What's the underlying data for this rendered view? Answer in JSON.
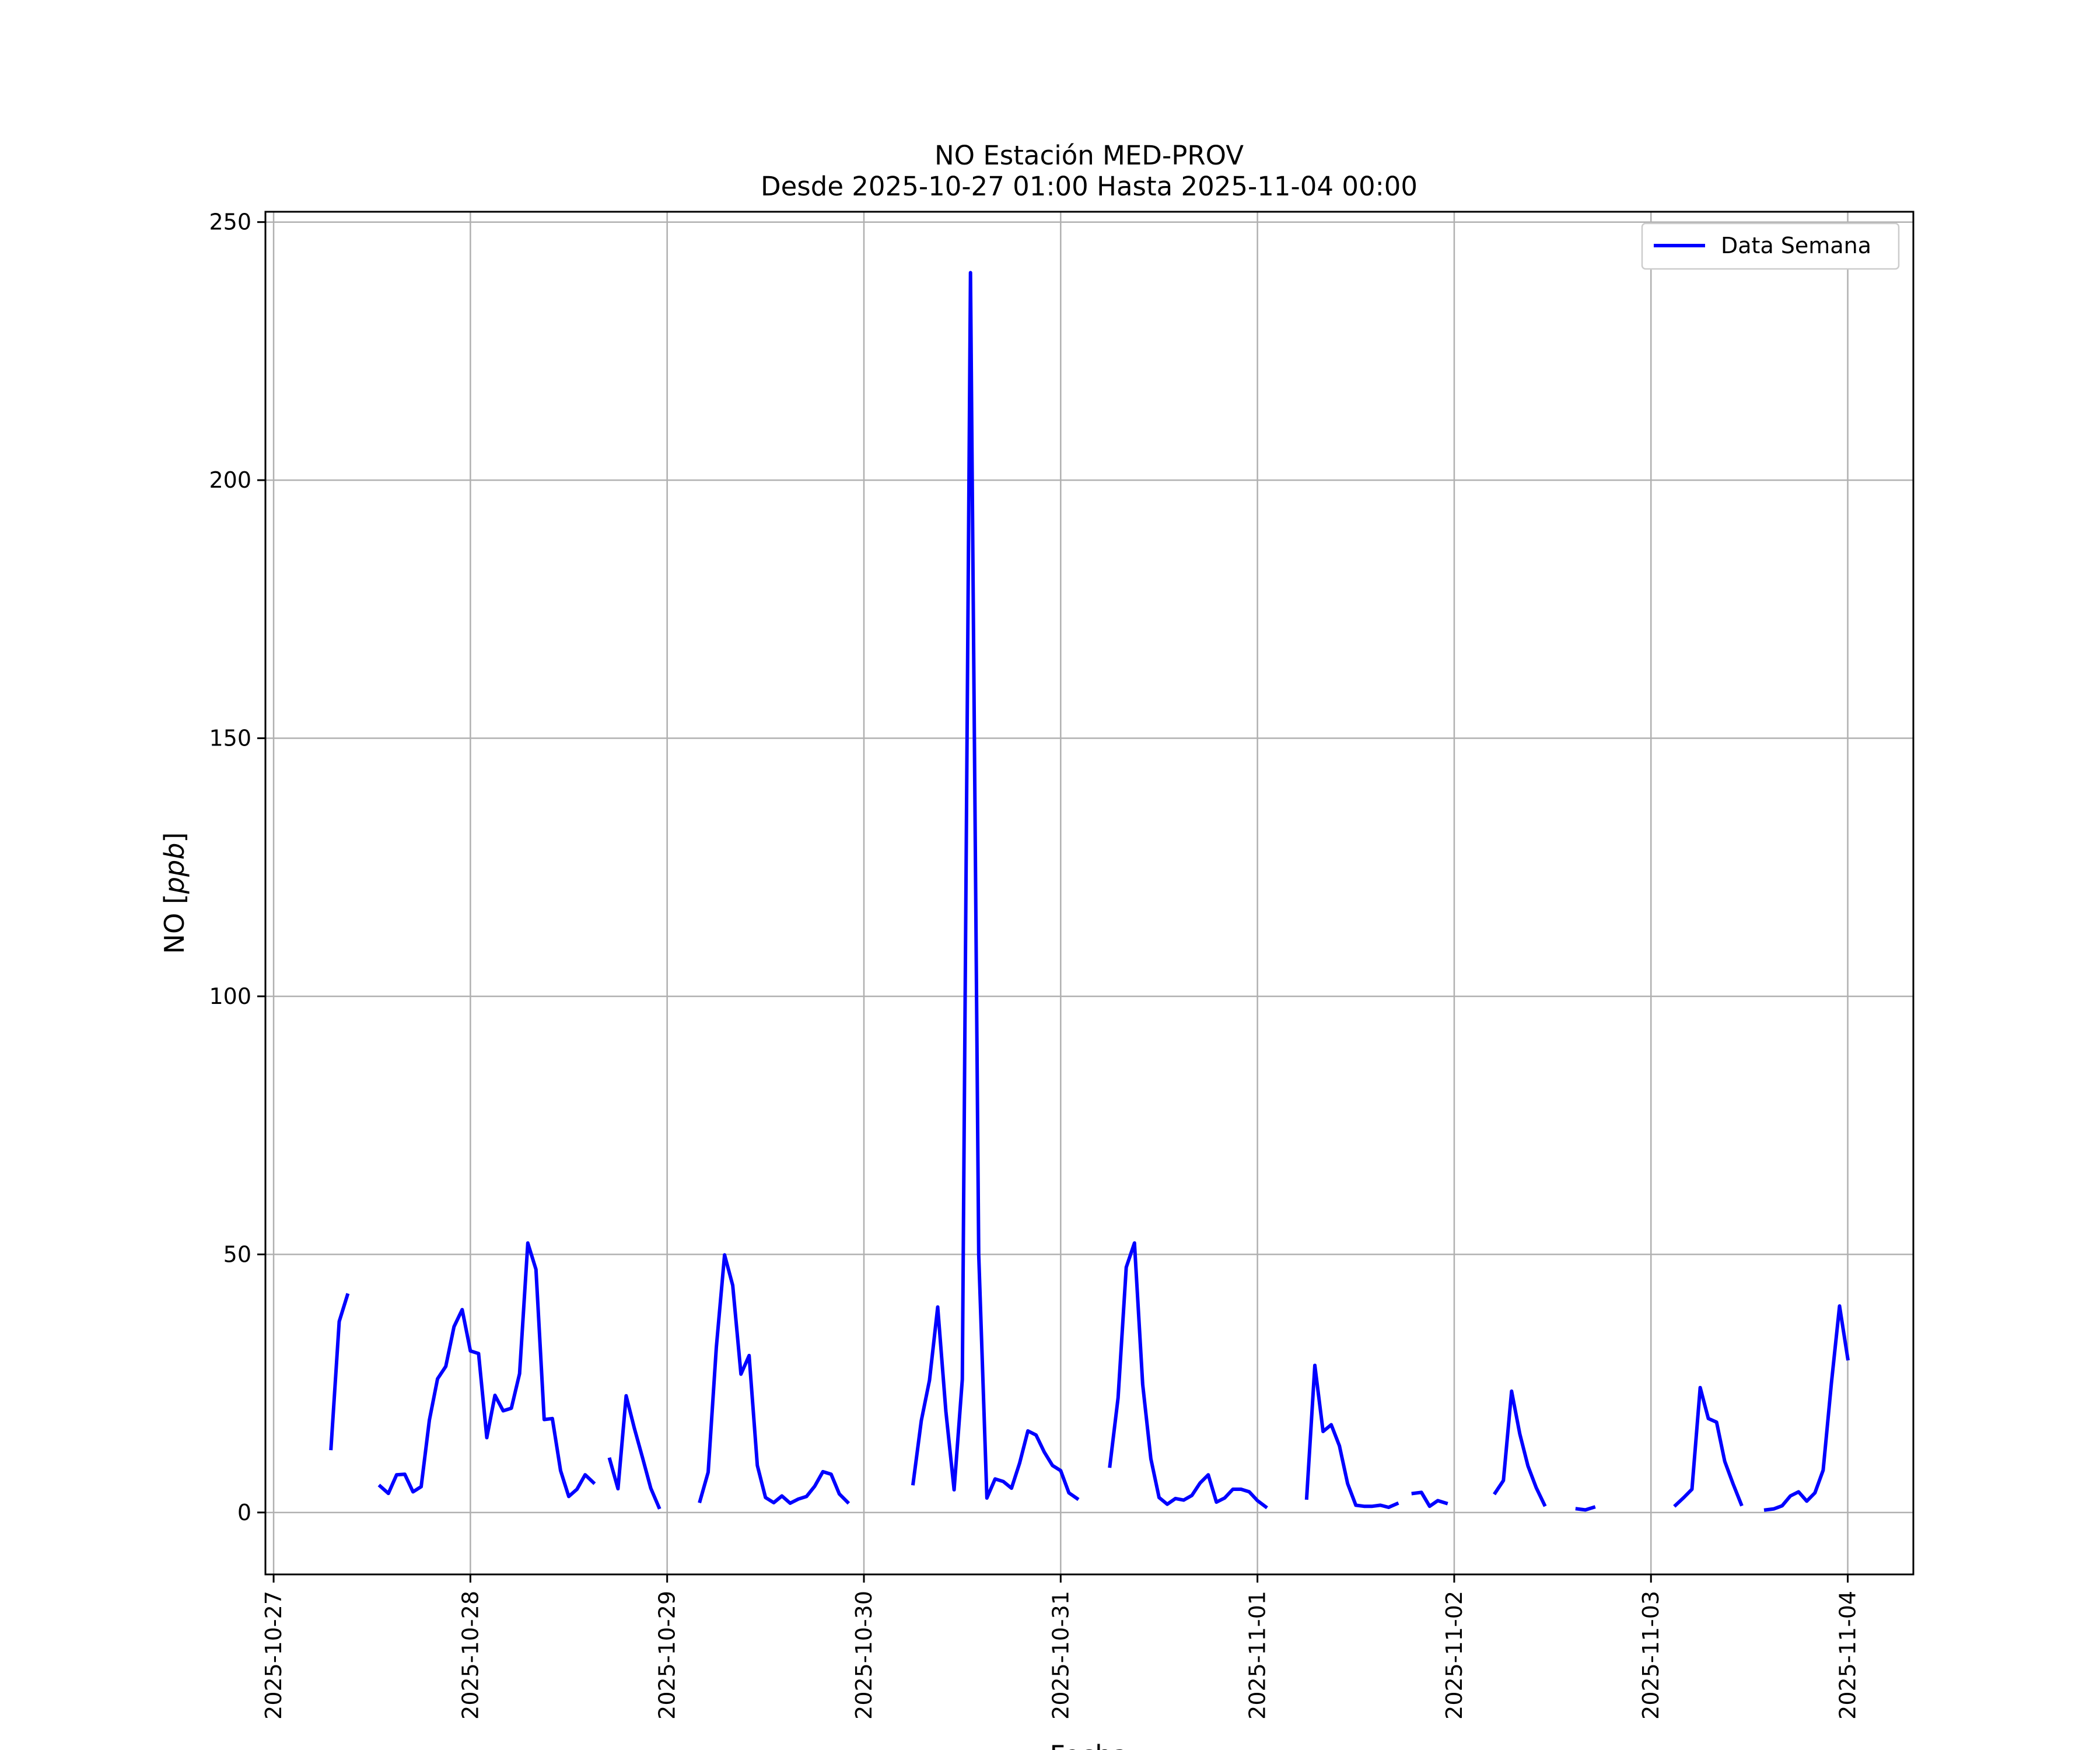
{
  "chart_data": {
    "type": "line",
    "title": "NO Estación MED-PROV",
    "subtitle": "Desde 2025-10-27 01:00 Hasta 2025-11-04 00:00",
    "xlabel": "Fecha",
    "ylabel": "NO [ppb]",
    "ylabel_prefix": "NO [",
    "ylabel_unit": "ppb",
    "ylabel_suffix": "]",
    "grid": true,
    "legend_position": "top-right",
    "xlim": [
      "2025-10-26 23:00",
      "2025-11-04 08:00"
    ],
    "ylim": [
      -12,
      252
    ],
    "x_ticks": [
      "2025-10-27",
      "2025-10-28",
      "2025-10-29",
      "2025-10-30",
      "2025-10-31",
      "2025-11-01",
      "2025-11-02",
      "2025-11-03",
      "2025-11-04"
    ],
    "y_ticks": [
      0,
      50,
      100,
      150,
      200,
      250
    ],
    "series": [
      {
        "name": "Data Semana",
        "color": "#0000ff",
        "segments": [
          [
            [
              "2025-10-27 07:00",
              12.4
            ],
            [
              "2025-10-27 08:00",
              37.0
            ],
            [
              "2025-10-27 09:00",
              42.1
            ]
          ],
          [
            [
              "2025-10-27 13:00",
              5.1
            ],
            [
              "2025-10-27 14:00",
              3.7
            ],
            [
              "2025-10-27 15:00",
              7.3
            ],
            [
              "2025-10-27 16:00",
              7.4
            ],
            [
              "2025-10-27 17:00",
              4.0
            ],
            [
              "2025-10-27 18:00",
              5.0
            ],
            [
              "2025-10-27 19:00",
              17.9
            ],
            [
              "2025-10-27 20:00",
              25.9
            ],
            [
              "2025-10-27 21:00",
              28.3
            ],
            [
              "2025-10-27 22:00",
              36.0
            ],
            [
              "2025-10-27 23:00",
              39.3
            ],
            [
              "2025-10-28 00:00",
              31.3
            ],
            [
              "2025-10-28 01:00",
              30.8
            ],
            [
              "2025-10-28 02:00",
              14.5
            ],
            [
              "2025-10-28 03:00",
              22.7
            ],
            [
              "2025-10-28 04:00",
              19.7
            ],
            [
              "2025-10-28 05:00",
              20.2
            ],
            [
              "2025-10-28 06:00",
              26.9
            ],
            [
              "2025-10-28 07:00",
              52.2
            ],
            [
              "2025-10-28 08:00",
              47.1
            ],
            [
              "2025-10-28 09:00",
              18.0
            ],
            [
              "2025-10-28 10:00",
              18.2
            ],
            [
              "2025-10-28 11:00",
              8.1
            ],
            [
              "2025-10-28 12:00",
              3.1
            ],
            [
              "2025-10-28 13:00",
              4.5
            ],
            [
              "2025-10-28 14:00",
              7.3
            ],
            [
              "2025-10-28 15:00",
              5.8
            ]
          ],
          [
            [
              "2025-10-28 17:00",
              10.3
            ],
            [
              "2025-10-28 18:00",
              4.6
            ],
            [
              "2025-10-28 19:00",
              22.6
            ],
            [
              "2025-10-28 20:00",
              16.3
            ],
            [
              "2025-10-28 21:00",
              10.6
            ],
            [
              "2025-10-28 22:00",
              4.7
            ],
            [
              "2025-10-28 23:00",
              1.0
            ]
          ],
          [
            [
              "2025-10-29 04:00",
              2.2
            ],
            [
              "2025-10-29 05:00",
              7.8
            ],
            [
              "2025-10-29 06:00",
              32.0
            ],
            [
              "2025-10-29 07:00",
              49.9
            ],
            [
              "2025-10-29 08:00",
              44.0
            ],
            [
              "2025-10-29 09:00",
              26.8
            ],
            [
              "2025-10-29 10:00",
              30.4
            ],
            [
              "2025-10-29 11:00",
              9.1
            ],
            [
              "2025-10-29 12:00",
              2.9
            ],
            [
              "2025-10-29 13:00",
              1.9
            ],
            [
              "2025-10-29 14:00",
              3.2
            ],
            [
              "2025-10-29 15:00",
              1.8
            ],
            [
              "2025-10-29 16:00",
              2.6
            ],
            [
              "2025-10-29 17:00",
              3.1
            ],
            [
              "2025-10-29 18:00",
              5.1
            ],
            [
              "2025-10-29 19:00",
              7.9
            ],
            [
              "2025-10-29 20:00",
              7.4
            ],
            [
              "2025-10-29 21:00",
              3.6
            ],
            [
              "2025-10-29 22:00",
              2.0
            ]
          ],
          [
            [
              "2025-10-30 06:00",
              5.6
            ],
            [
              "2025-10-30 07:00",
              17.8
            ],
            [
              "2025-10-30 08:00",
              25.6
            ],
            [
              "2025-10-30 09:00",
              39.8
            ],
            [
              "2025-10-30 10:00",
              19.6
            ],
            [
              "2025-10-30 11:00",
              4.4
            ],
            [
              "2025-10-30 12:00",
              25.8
            ],
            [
              "2025-10-30 13:00",
              240.2
            ],
            [
              "2025-10-30 14:00",
              50.0
            ],
            [
              "2025-10-30 15:00",
              2.8
            ],
            [
              "2025-10-30 16:00",
              6.5
            ],
            [
              "2025-10-30 17:00",
              6.0
            ],
            [
              "2025-10-30 18:00",
              4.7
            ],
            [
              "2025-10-30 19:00",
              9.6
            ],
            [
              "2025-10-30 20:00",
              15.8
            ],
            [
              "2025-10-30 21:00",
              15.0
            ],
            [
              "2025-10-30 22:00",
              11.7
            ],
            [
              "2025-10-30 23:00",
              9.1
            ],
            [
              "2025-10-31 00:00",
              8.1
            ],
            [
              "2025-10-31 01:00",
              3.8
            ],
            [
              "2025-10-31 02:00",
              2.7
            ]
          ],
          [
            [
              "2025-10-31 06:00",
              9.0
            ],
            [
              "2025-10-31 07:00",
              22.2
            ],
            [
              "2025-10-31 08:00",
              47.5
            ],
            [
              "2025-10-31 09:00",
              52.2
            ],
            [
              "2025-10-31 10:00",
              24.8
            ],
            [
              "2025-10-31 11:00",
              10.4
            ],
            [
              "2025-10-31 12:00",
              2.9
            ],
            [
              "2025-10-31 13:00",
              1.6
            ],
            [
              "2025-10-31 14:00",
              2.7
            ],
            [
              "2025-10-31 15:00",
              2.4
            ],
            [
              "2025-10-31 16:00",
              3.3
            ],
            [
              "2025-10-31 17:00",
              5.7
            ],
            [
              "2025-10-31 18:00",
              7.3
            ],
            [
              "2025-10-31 19:00",
              2.0
            ],
            [
              "2025-10-31 20:00",
              2.8
            ],
            [
              "2025-10-31 21:00",
              4.5
            ],
            [
              "2025-10-31 22:00",
              4.5
            ],
            [
              "2025-10-31 23:00",
              4.0
            ],
            [
              "2025-11-01 00:00",
              2.3
            ],
            [
              "2025-11-01 01:00",
              1.1
            ]
          ],
          [
            [
              "2025-11-01 06:00",
              2.8
            ],
            [
              "2025-11-01 07:00",
              28.5
            ],
            [
              "2025-11-01 08:00",
              15.7
            ],
            [
              "2025-11-01 09:00",
              17.0
            ],
            [
              "2025-11-01 10:00",
              12.9
            ],
            [
              "2025-11-01 11:00",
              5.6
            ],
            [
              "2025-11-01 12:00",
              1.4
            ],
            [
              "2025-11-01 13:00",
              1.2
            ],
            [
              "2025-11-01 14:00",
              1.2
            ],
            [
              "2025-11-01 15:00",
              1.4
            ],
            [
              "2025-11-01 16:00",
              1.0
            ],
            [
              "2025-11-01 17:00",
              1.7
            ]
          ],
          [
            [
              "2025-11-01 19:00",
              3.7
            ],
            [
              "2025-11-01 20:00",
              3.9
            ],
            [
              "2025-11-01 21:00",
              1.2
            ],
            [
              "2025-11-01 22:00",
              2.3
            ],
            [
              "2025-11-01 23:00",
              1.8
            ]
          ],
          [
            [
              "2025-11-02 05:00",
              3.8
            ],
            [
              "2025-11-02 06:00",
              6.2
            ],
            [
              "2025-11-02 07:00",
              23.5
            ],
            [
              "2025-11-02 08:00",
              15.2
            ],
            [
              "2025-11-02 09:00",
              9.0
            ],
            [
              "2025-11-02 10:00",
              4.8
            ],
            [
              "2025-11-02 11:00",
              1.5
            ]
          ],
          [
            [
              "2025-11-02 15:00",
              0.7
            ],
            [
              "2025-11-02 16:00",
              0.5
            ],
            [
              "2025-11-02 17:00",
              1.0
            ]
          ],
          [
            [
              "2025-11-03 03:00",
              1.4
            ],
            [
              "2025-11-03 04:00",
              2.9
            ],
            [
              "2025-11-03 05:00",
              4.5
            ],
            [
              "2025-11-03 06:00",
              24.2
            ],
            [
              "2025-11-03 07:00",
              18.2
            ],
            [
              "2025-11-03 08:00",
              17.5
            ],
            [
              "2025-11-03 09:00",
              9.9
            ],
            [
              "2025-11-03 10:00",
              5.6
            ],
            [
              "2025-11-03 11:00",
              1.6
            ]
          ],
          [
            [
              "2025-11-03 14:00",
              0.5
            ],
            [
              "2025-11-03 15:00",
              0.7
            ],
            [
              "2025-11-03 16:00",
              1.3
            ],
            [
              "2025-11-03 17:00",
              3.2
            ],
            [
              "2025-11-03 18:00",
              4.0
            ],
            [
              "2025-11-03 19:00",
              2.2
            ],
            [
              "2025-11-03 20:00",
              3.8
            ],
            [
              "2025-11-03 21:00",
              8.2
            ],
            [
              "2025-11-03 22:00",
              25.0
            ],
            [
              "2025-11-03 23:00",
              40.0
            ],
            [
              "2025-11-04 00:00",
              29.8
            ]
          ]
        ]
      }
    ]
  }
}
